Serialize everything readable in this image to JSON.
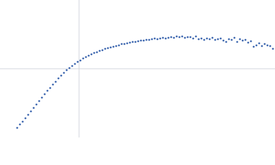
{
  "chart_data": {
    "type": "scatter",
    "color": "#3f68b0",
    "xlim": [
      -115,
      285
    ],
    "ylim": [
      -100,
      100
    ],
    "x": [
      -90,
      -86,
      -82,
      -78,
      -74,
      -70,
      -66,
      -62,
      -58,
      -54,
      -50,
      -46,
      -42,
      -38,
      -34,
      -30,
      -26,
      -22,
      -18,
      -14,
      -10,
      -6,
      -2,
      2,
      6,
      10,
      14,
      18,
      22,
      26,
      30,
      34,
      38,
      42,
      46,
      50,
      54,
      58,
      62,
      66,
      70,
      74,
      78,
      82,
      86,
      90,
      94,
      98,
      102,
      106,
      110,
      114,
      118,
      122,
      126,
      130,
      134,
      138,
      142,
      146,
      150,
      154,
      158,
      162,
      166,
      170,
      174,
      178,
      182,
      186,
      190,
      194,
      198,
      202,
      206,
      210,
      214,
      218,
      222,
      226,
      230,
      234,
      238,
      242,
      246,
      250,
      254,
      258,
      262,
      266,
      270,
      274,
      278,
      282
    ],
    "values": [
      -86,
      -81,
      -77,
      -72,
      -67,
      -62,
      -57,
      -52,
      -47,
      -42,
      -37,
      -32,
      -28,
      -23,
      -19,
      -14,
      -10,
      -6,
      -2,
      1,
      4,
      7,
      10,
      12,
      15,
      17,
      19,
      21,
      23,
      24,
      26,
      27,
      29,
      30,
      31,
      32,
      33,
      34,
      36,
      36,
      37,
      38,
      39,
      39,
      40,
      41,
      41,
      42,
      42,
      43,
      44,
      43,
      44,
      45,
      44,
      45,
      46,
      45,
      47,
      46,
      47,
      45,
      46,
      46,
      44,
      47,
      43,
      44,
      42,
      44,
      43,
      45,
      42,
      43,
      44,
      41,
      39,
      43,
      42,
      45,
      39,
      43,
      41,
      42,
      38,
      40,
      32,
      34,
      37,
      33,
      36,
      34,
      33,
      29
    ]
  }
}
